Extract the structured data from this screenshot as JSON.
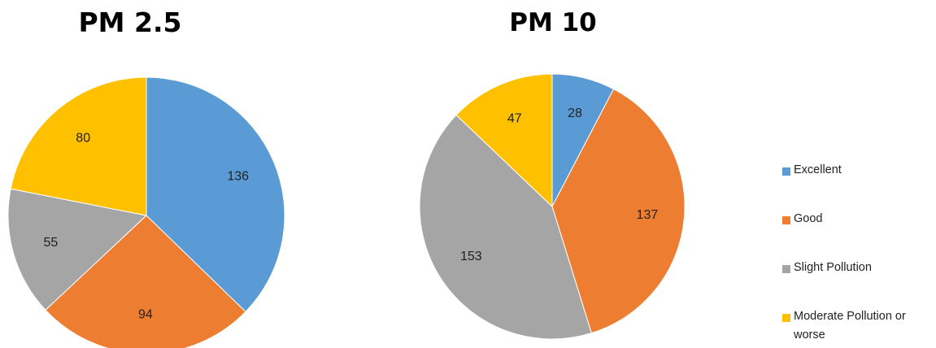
{
  "chart_data": [
    {
      "type": "pie",
      "title": "PM 2.5",
      "categories": [
        "Excellent",
        "Good",
        "Slight Pollution",
        "Moderate Pollution or worse"
      ],
      "values": [
        136,
        94,
        55,
        80
      ]
    },
    {
      "type": "pie",
      "title": "PM 10",
      "categories": [
        "Excellent",
        "Good",
        "Slight Pollution",
        "Moderate Pollution or worse"
      ],
      "values": [
        28,
        137,
        153,
        47
      ]
    }
  ],
  "legend": {
    "placement": "right",
    "items": [
      {
        "label": "Excellent",
        "color": "#5B9BD5"
      },
      {
        "label": "Good",
        "color": "#ED7D31"
      },
      {
        "label": "Slight Pollution",
        "color": "#A5A5A5"
      },
      {
        "label": "Moderate Pollution or worse",
        "color": "#FFC000"
      }
    ]
  }
}
